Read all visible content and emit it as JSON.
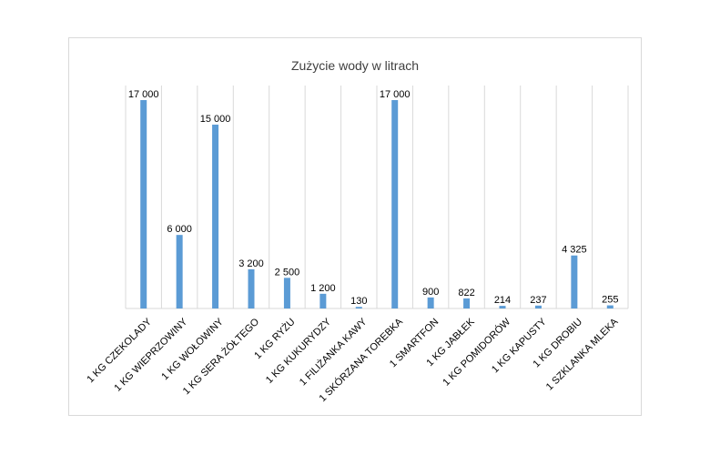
{
  "chart_data": {
    "type": "bar",
    "title": "Zużycie wody w litrach",
    "xlabel": "",
    "ylabel": "",
    "ylim": [
      0,
      17000
    ],
    "grid": "vertical category separators",
    "legend": "none",
    "bar_color": "#5b9bd5",
    "categories": [
      "1 KG CZEKOLADY",
      "1 KG WIEPRZOWINY",
      "1 KG WOŁOWINY",
      "1 KG SERA ŻÓŁTEGO",
      "1 KG RYŻU",
      "1 KG KUKURYDZY",
      "1 FILIŻANKA KAWY",
      "1 SKÓRZANA TOREBKA",
      "1 SMARTFON",
      "1 KG JABŁEK",
      "1 KG POMIDORÓW",
      "1 KG KAPUSTY",
      "1 KG DROBIU",
      "1 SZKLANKA MLEKA"
    ],
    "values": [
      17000,
      6000,
      15000,
      3200,
      2500,
      1200,
      130,
      17000,
      900,
      822,
      214,
      237,
      4325,
      255
    ],
    "data_labels": [
      "17 000",
      "6 000",
      "15 000",
      "3 200",
      "2 500",
      "1 200",
      "130",
      "17 000",
      "900",
      "822",
      "214",
      "237",
      "4 325",
      "255"
    ]
  }
}
